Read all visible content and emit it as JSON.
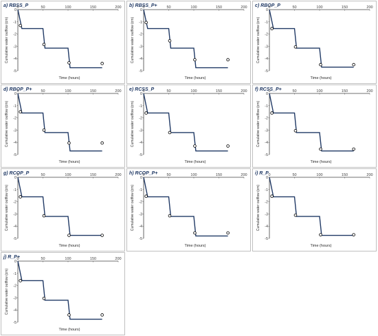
{
  "chart_data": [
    {
      "panel_title": "a) RBSS_P",
      "type": "line",
      "xlabel": "Time (hours)",
      "ylabel": "Cumulative water outflow (cm)",
      "xlim": [
        0,
        200
      ],
      "ylim": [
        -5,
        0
      ],
      "xticks": [
        "0",
        "50",
        "100",
        "150",
        "200"
      ],
      "yticks": [
        "0",
        "-1",
        "-2",
        "-3",
        "-4",
        "-5"
      ],
      "series": [
        {
          "kind": "line",
          "x": [
            0,
            8,
            50,
            54,
            100,
            104,
            168
          ],
          "y": [
            0,
            -1.55,
            -1.55,
            -3.15,
            -3.15,
            -4.75,
            -4.75
          ]
        },
        {
          "kind": "markers",
          "x": [
            5,
            52,
            102,
            168
          ],
          "y": [
            -1.3,
            -2.85,
            -4.35,
            -4.4
          ]
        }
      ]
    },
    {
      "panel_title": "b) RBSS_P+",
      "type": "line",
      "xlabel": "Time (hours)",
      "ylabel": "Cumulative water outflow (cm)",
      "xlim": [
        0,
        200
      ],
      "ylim": [
        -5,
        0
      ],
      "xticks": [
        "0",
        "50",
        "100",
        "150",
        "200"
      ],
      "yticks": [
        "0",
        "-1",
        "-2",
        "-3",
        "-4",
        "-5"
      ],
      "series": [
        {
          "kind": "line",
          "x": [
            0,
            8,
            50,
            54,
            100,
            104,
            168
          ],
          "y": [
            0,
            -1.55,
            -1.55,
            -3.15,
            -3.15,
            -4.75,
            -4.75
          ]
        },
        {
          "kind": "markers",
          "x": [
            5,
            52,
            102,
            168
          ],
          "y": [
            -1.05,
            -2.55,
            -4.1,
            -4.1
          ]
        }
      ]
    },
    {
      "panel_title": "c) RBOP_P",
      "type": "line",
      "xlabel": "Time (hours)",
      "ylabel": "Cumulative water outflow (cm)",
      "xlim": [
        0,
        200
      ],
      "ylim": [
        -5,
        0
      ],
      "xticks": [
        "0",
        "50",
        "100",
        "150",
        "200"
      ],
      "yticks": [
        "0",
        "-1",
        "-2",
        "-3",
        "-4",
        "-5"
      ],
      "series": [
        {
          "kind": "line",
          "x": [
            0,
            8,
            50,
            54,
            100,
            104,
            168
          ],
          "y": [
            0,
            -1.55,
            -1.55,
            -3.15,
            -3.15,
            -4.7,
            -4.7
          ]
        },
        {
          "kind": "markers",
          "x": [
            5,
            52,
            102,
            168
          ],
          "y": [
            -1.55,
            -3.05,
            -4.5,
            -4.5
          ]
        }
      ]
    },
    {
      "panel_title": "d) RBOP_P+",
      "type": "line",
      "xlabel": "Time (hours)",
      "ylabel": "Cumulative water outflow (cm)",
      "xlim": [
        0,
        200
      ],
      "ylim": [
        -5,
        0
      ],
      "xticks": [
        "0",
        "50",
        "100",
        "150",
        "200"
      ],
      "yticks": [
        "0",
        "-1",
        "-2",
        "-3",
        "-4",
        "-5"
      ],
      "series": [
        {
          "kind": "line",
          "x": [
            0,
            8,
            50,
            54,
            100,
            104,
            168
          ],
          "y": [
            0,
            -1.6,
            -1.6,
            -3.2,
            -3.2,
            -4.7,
            -4.7
          ]
        },
        {
          "kind": "markers",
          "x": [
            5,
            52,
            102,
            168
          ],
          "y": [
            -1.5,
            -3.0,
            -4.05,
            -4.05
          ]
        }
      ]
    },
    {
      "panel_title": "e) RCSS_P",
      "type": "line",
      "xlabel": "Time (hours)",
      "ylabel": "Cumulative water outflow (cm)",
      "xlim": [
        0,
        200
      ],
      "ylim": [
        -5,
        0
      ],
      "xticks": [
        "0",
        "50",
        "100",
        "150",
        "200"
      ],
      "yticks": [
        "0",
        "-1",
        "-2",
        "-3",
        "-4",
        "-5"
      ],
      "series": [
        {
          "kind": "line",
          "x": [
            0,
            8,
            50,
            54,
            100,
            104,
            168
          ],
          "y": [
            0,
            -1.6,
            -1.6,
            -3.2,
            -3.2,
            -4.7,
            -4.7
          ]
        },
        {
          "kind": "markers",
          "x": [
            5,
            52,
            102,
            168
          ],
          "y": [
            -1.6,
            -3.2,
            -4.3,
            -4.3
          ]
        }
      ]
    },
    {
      "panel_title": "f) RCSS_P+",
      "type": "line",
      "xlabel": "Time (hours)",
      "ylabel": "Cumulative water outflow (cm)",
      "xlim": [
        0,
        200
      ],
      "ylim": [
        -5,
        0
      ],
      "xticks": [
        "0",
        "50",
        "100",
        "150",
        "200"
      ],
      "yticks": [
        "0",
        "-1",
        "-2",
        "-3",
        "-4",
        "-5"
      ],
      "series": [
        {
          "kind": "line",
          "x": [
            0,
            8,
            50,
            54,
            100,
            104,
            168
          ],
          "y": [
            0,
            -1.6,
            -1.6,
            -3.2,
            -3.2,
            -4.7,
            -4.7
          ]
        },
        {
          "kind": "markers",
          "x": [
            5,
            52,
            102,
            168
          ],
          "y": [
            -1.6,
            -3.05,
            -4.55,
            -4.55
          ]
        }
      ]
    },
    {
      "panel_title": "g) RCOP_P",
      "type": "line",
      "xlabel": "Time (hours)",
      "ylabel": "Cumulative water outflow (cm)",
      "xlim": [
        0,
        200
      ],
      "ylim": [
        -5,
        0
      ],
      "xticks": [
        "0",
        "50",
        "100",
        "150",
        "200"
      ],
      "yticks": [
        "0",
        "-1",
        "-2",
        "-3",
        "-4",
        "-5"
      ],
      "series": [
        {
          "kind": "line",
          "x": [
            0,
            8,
            50,
            54,
            100,
            104,
            168
          ],
          "y": [
            0,
            -1.6,
            -1.6,
            -3.2,
            -3.2,
            -4.75,
            -4.75
          ]
        },
        {
          "kind": "markers",
          "x": [
            5,
            52,
            102,
            168
          ],
          "y": [
            -1.6,
            -3.15,
            -4.75,
            -4.75
          ]
        }
      ]
    },
    {
      "panel_title": "h) RCOP_P+",
      "type": "line",
      "xlabel": "Time (hours)",
      "ylabel": "Cumulative water outflow (cm)",
      "xlim": [
        0,
        200
      ],
      "ylim": [
        -5,
        0
      ],
      "xticks": [
        "0",
        "50",
        "100",
        "150",
        "200"
      ],
      "yticks": [
        "0",
        "-1",
        "-2",
        "-3",
        "-4",
        "-5"
      ],
      "series": [
        {
          "kind": "line",
          "x": [
            0,
            8,
            50,
            54,
            100,
            104,
            168
          ],
          "y": [
            0,
            -1.6,
            -1.6,
            -3.2,
            -3.2,
            -4.8,
            -4.8
          ]
        },
        {
          "kind": "markers",
          "x": [
            5,
            52,
            102,
            168
          ],
          "y": [
            -1.55,
            -3.15,
            -4.55,
            -4.55
          ]
        }
      ]
    },
    {
      "panel_title": "i) R_P",
      "type": "line",
      "xlabel": "Time (hours)",
      "ylabel": "Cumulative water outflow (cm)",
      "xlim": [
        0,
        200
      ],
      "ylim": [
        -5,
        0
      ],
      "xticks": [
        "0",
        "50",
        "100",
        "150",
        "200"
      ],
      "yticks": [
        "0",
        "-1",
        "-2",
        "-3",
        "-4",
        "-5"
      ],
      "series": [
        {
          "kind": "line",
          "x": [
            0,
            8,
            50,
            54,
            100,
            104,
            168
          ],
          "y": [
            0,
            -1.6,
            -1.6,
            -3.2,
            -3.2,
            -4.75,
            -4.75
          ]
        },
        {
          "kind": "markers",
          "x": [
            5,
            52,
            102,
            168
          ],
          "y": [
            -1.55,
            -3.1,
            -4.7,
            -4.7
          ]
        }
      ]
    },
    {
      "panel_title": "j) R_P+",
      "type": "line",
      "xlabel": "Time (hours)",
      "ylabel": "Cumulative water outflow (cm)",
      "xlim": [
        0,
        200
      ],
      "ylim": [
        -5,
        0
      ],
      "xticks": [
        "0",
        "50",
        "100",
        "150",
        "200"
      ],
      "yticks": [
        "0",
        "-1",
        "-2",
        "-3",
        "-4",
        "-5"
      ],
      "series": [
        {
          "kind": "line",
          "x": [
            0,
            8,
            50,
            54,
            100,
            104,
            168
          ],
          "y": [
            0,
            -1.6,
            -1.6,
            -3.2,
            -3.2,
            -4.75,
            -4.75
          ]
        },
        {
          "kind": "markers",
          "x": [
            5,
            52,
            102,
            168
          ],
          "y": [
            -1.6,
            -3.05,
            -4.4,
            -4.4
          ]
        }
      ]
    }
  ],
  "colors": {
    "line": "#1f3864",
    "marker_edge": "#000000",
    "marker_fill": "#ffffff",
    "axis": "#404040",
    "title": "#1f3864"
  }
}
